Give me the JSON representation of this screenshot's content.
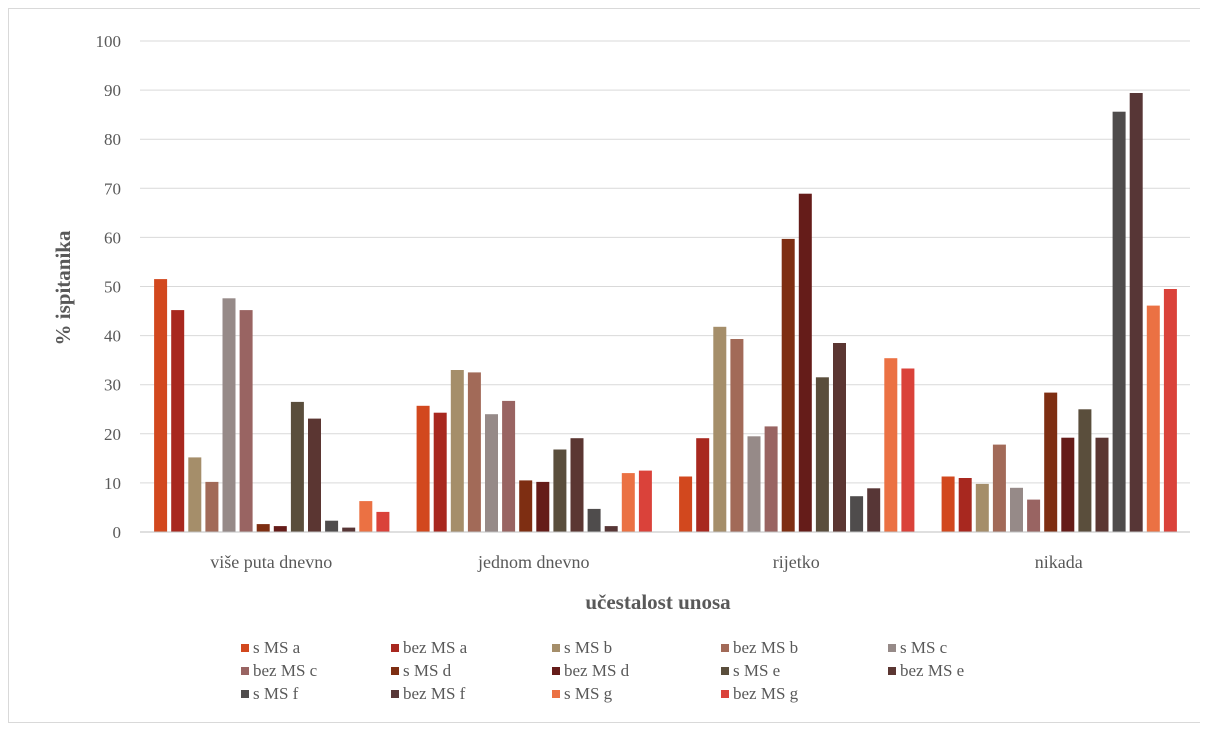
{
  "chart_data": {
    "type": "bar",
    "title": "",
    "xlabel": "učestalost unosa",
    "ylabel": "% ispitanika",
    "ylim": [
      0,
      100
    ],
    "yticks": [
      "0",
      "10",
      "20",
      "30",
      "40",
      "50",
      "60",
      "70",
      "80",
      "90",
      "100"
    ],
    "grid": true,
    "legend_position": "bottom",
    "categories": [
      "više puta dnevno",
      "jednom dnevno",
      "rijetko",
      "nikada"
    ],
    "series": [
      {
        "name": "s MS a",
        "color": "#D2481E",
        "values": [
          51.5,
          25.7,
          11.3,
          11.3
        ]
      },
      {
        "name": "bez MS a",
        "color": "#A8281F",
        "values": [
          45.2,
          24.3,
          19.1,
          11.0
        ]
      },
      {
        "name": "s MS b",
        "color": "#A58E6A",
        "values": [
          15.2,
          33.0,
          41.8,
          9.8
        ]
      },
      {
        "name": "bez MS b",
        "color": "#A26A58",
        "values": [
          10.2,
          32.5,
          39.3,
          17.8
        ]
      },
      {
        "name": "s MS c",
        "color": "#968A88",
        "values": [
          47.6,
          24.0,
          19.5,
          9.0
        ]
      },
      {
        "name": "bez MS c",
        "color": "#996462",
        "values": [
          45.2,
          26.7,
          21.5,
          6.6
        ]
      },
      {
        "name": "s MS d",
        "color": "#7E2E12",
        "values": [
          1.6,
          10.5,
          59.7,
          28.4
        ]
      },
      {
        "name": "bez MS d",
        "color": "#651C19",
        "values": [
          1.2,
          10.2,
          68.9,
          19.2
        ]
      },
      {
        "name": "s MS e",
        "color": "#5A4E3C",
        "values": [
          26.5,
          16.8,
          31.5,
          25.0
        ]
      },
      {
        "name": "bez MS e",
        "color": "#5B3632",
        "values": [
          23.1,
          19.1,
          38.5,
          19.2
        ]
      },
      {
        "name": "s MS f",
        "color": "#4F4C4C",
        "values": [
          2.3,
          4.7,
          7.3,
          85.6
        ]
      },
      {
        "name": "bez MS f",
        "color": "#573636",
        "values": [
          0.9,
          1.2,
          8.9,
          89.4
        ]
      },
      {
        "name": "s MS g",
        "color": "#EB7143",
        "values": [
          6.3,
          12.0,
          35.4,
          46.1
        ]
      },
      {
        "name": "bez MS g",
        "color": "#DA423A",
        "values": [
          4.1,
          12.5,
          33.3,
          49.5
        ]
      }
    ]
  }
}
